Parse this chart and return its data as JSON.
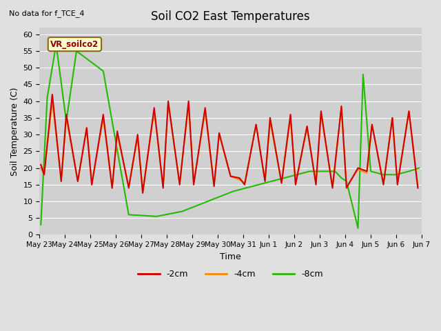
{
  "title": "Soil CO2 East Temperatures",
  "note": "No data for f_TCE_4",
  "ylabel": "Soil Temperature (C)",
  "xlabel": "Time",
  "legend_label": "VR_soilco2",
  "ylim": [
    0,
    62
  ],
  "yticks": [
    0,
    5,
    10,
    15,
    20,
    25,
    30,
    35,
    40,
    45,
    50,
    55,
    60
  ],
  "color_2cm": "#cc0000",
  "color_4cm": "#ff8800",
  "color_8cm": "#22bb00",
  "line_width": 1.5,
  "bg_color": "#e0e0e0",
  "plot_bg": "#d0d0d0",
  "tick_labels": [
    "May 23",
    "May 24",
    "May 25",
    "May 26",
    "May 27",
    "May 28",
    "May 29",
    "May 30",
    "May 31",
    "Jun 1",
    "Jun 2",
    "Jun 3",
    "Jun 4",
    "Jun 5",
    "Jun 6",
    "Jun 7"
  ],
  "x_2cm": [
    0.05,
    0.18,
    0.5,
    0.85,
    1.05,
    1.5,
    1.85,
    2.05,
    2.5,
    2.85,
    3.05,
    3.5,
    3.85,
    4.05,
    4.5,
    4.85,
    5.05,
    5.5,
    5.85,
    6.05,
    6.5,
    6.85,
    7.05,
    7.5,
    7.85,
    8.05,
    8.5,
    8.85,
    9.05,
    9.5,
    9.85,
    10.05,
    10.5,
    10.85,
    11.05,
    11.5,
    11.85,
    12.05,
    12.5,
    12.85,
    13.05,
    13.5,
    13.85,
    14.05,
    14.5,
    14.85
  ],
  "y_2cm": [
    21,
    18,
    42,
    16,
    36,
    16,
    32,
    15,
    36,
    14,
    31,
    14,
    30,
    12.5,
    38,
    14,
    40,
    15,
    40,
    15,
    38,
    14.5,
    30.5,
    17.5,
    17,
    15,
    33,
    16,
    35,
    15.5,
    36,
    15,
    32.5,
    15,
    37,
    14,
    38.5,
    14,
    20,
    19,
    33,
    15,
    35,
    15,
    37,
    14
  ],
  "x_4cm": [
    0.05,
    0.18,
    0.5,
    0.85,
    1.05,
    1.5,
    1.85,
    2.05,
    2.5,
    2.85,
    3.05,
    3.5,
    3.85,
    4.05,
    4.5,
    4.85,
    5.05,
    5.5,
    5.85,
    6.05,
    6.5,
    6.85,
    7.05,
    7.5,
    7.85,
    8.05,
    8.5,
    8.85,
    9.05,
    9.5,
    9.85,
    10.05,
    10.5,
    10.85,
    11.05,
    11.5,
    11.85,
    12.05,
    12.5,
    12.85,
    13.05,
    13.5,
    13.85,
    14.05,
    14.5,
    14.85
  ],
  "y_4cm": [
    20,
    18,
    40,
    16.5,
    35,
    16,
    32,
    15,
    35,
    14,
    30,
    14.5,
    29,
    13,
    37,
    14.5,
    39,
    15.5,
    39,
    15.5,
    37,
    15,
    30,
    17.5,
    16.5,
    15.5,
    33,
    16.5,
    34,
    15.5,
    35,
    15.5,
    32,
    15.5,
    36,
    14.5,
    38,
    14.5,
    19.5,
    18.5,
    33,
    15.5,
    35,
    15.5,
    37,
    14.5
  ],
  "x_8cm": [
    0.05,
    0.3,
    0.65,
    1.05,
    1.45,
    2.5,
    3.5,
    4.6,
    5.6,
    6.6,
    7.6,
    8.6,
    9.6,
    10.6,
    11.6,
    11.85,
    12.05,
    12.5,
    12.7,
    13.0,
    13.5,
    14.0,
    14.5,
    14.9
  ],
  "y_8cm": [
    3,
    41,
    57,
    34,
    55,
    49,
    6,
    5.5,
    7,
    10,
    13,
    15,
    17,
    19,
    19,
    17,
    16,
    2,
    48,
    19,
    18,
    18,
    19,
    20
  ]
}
